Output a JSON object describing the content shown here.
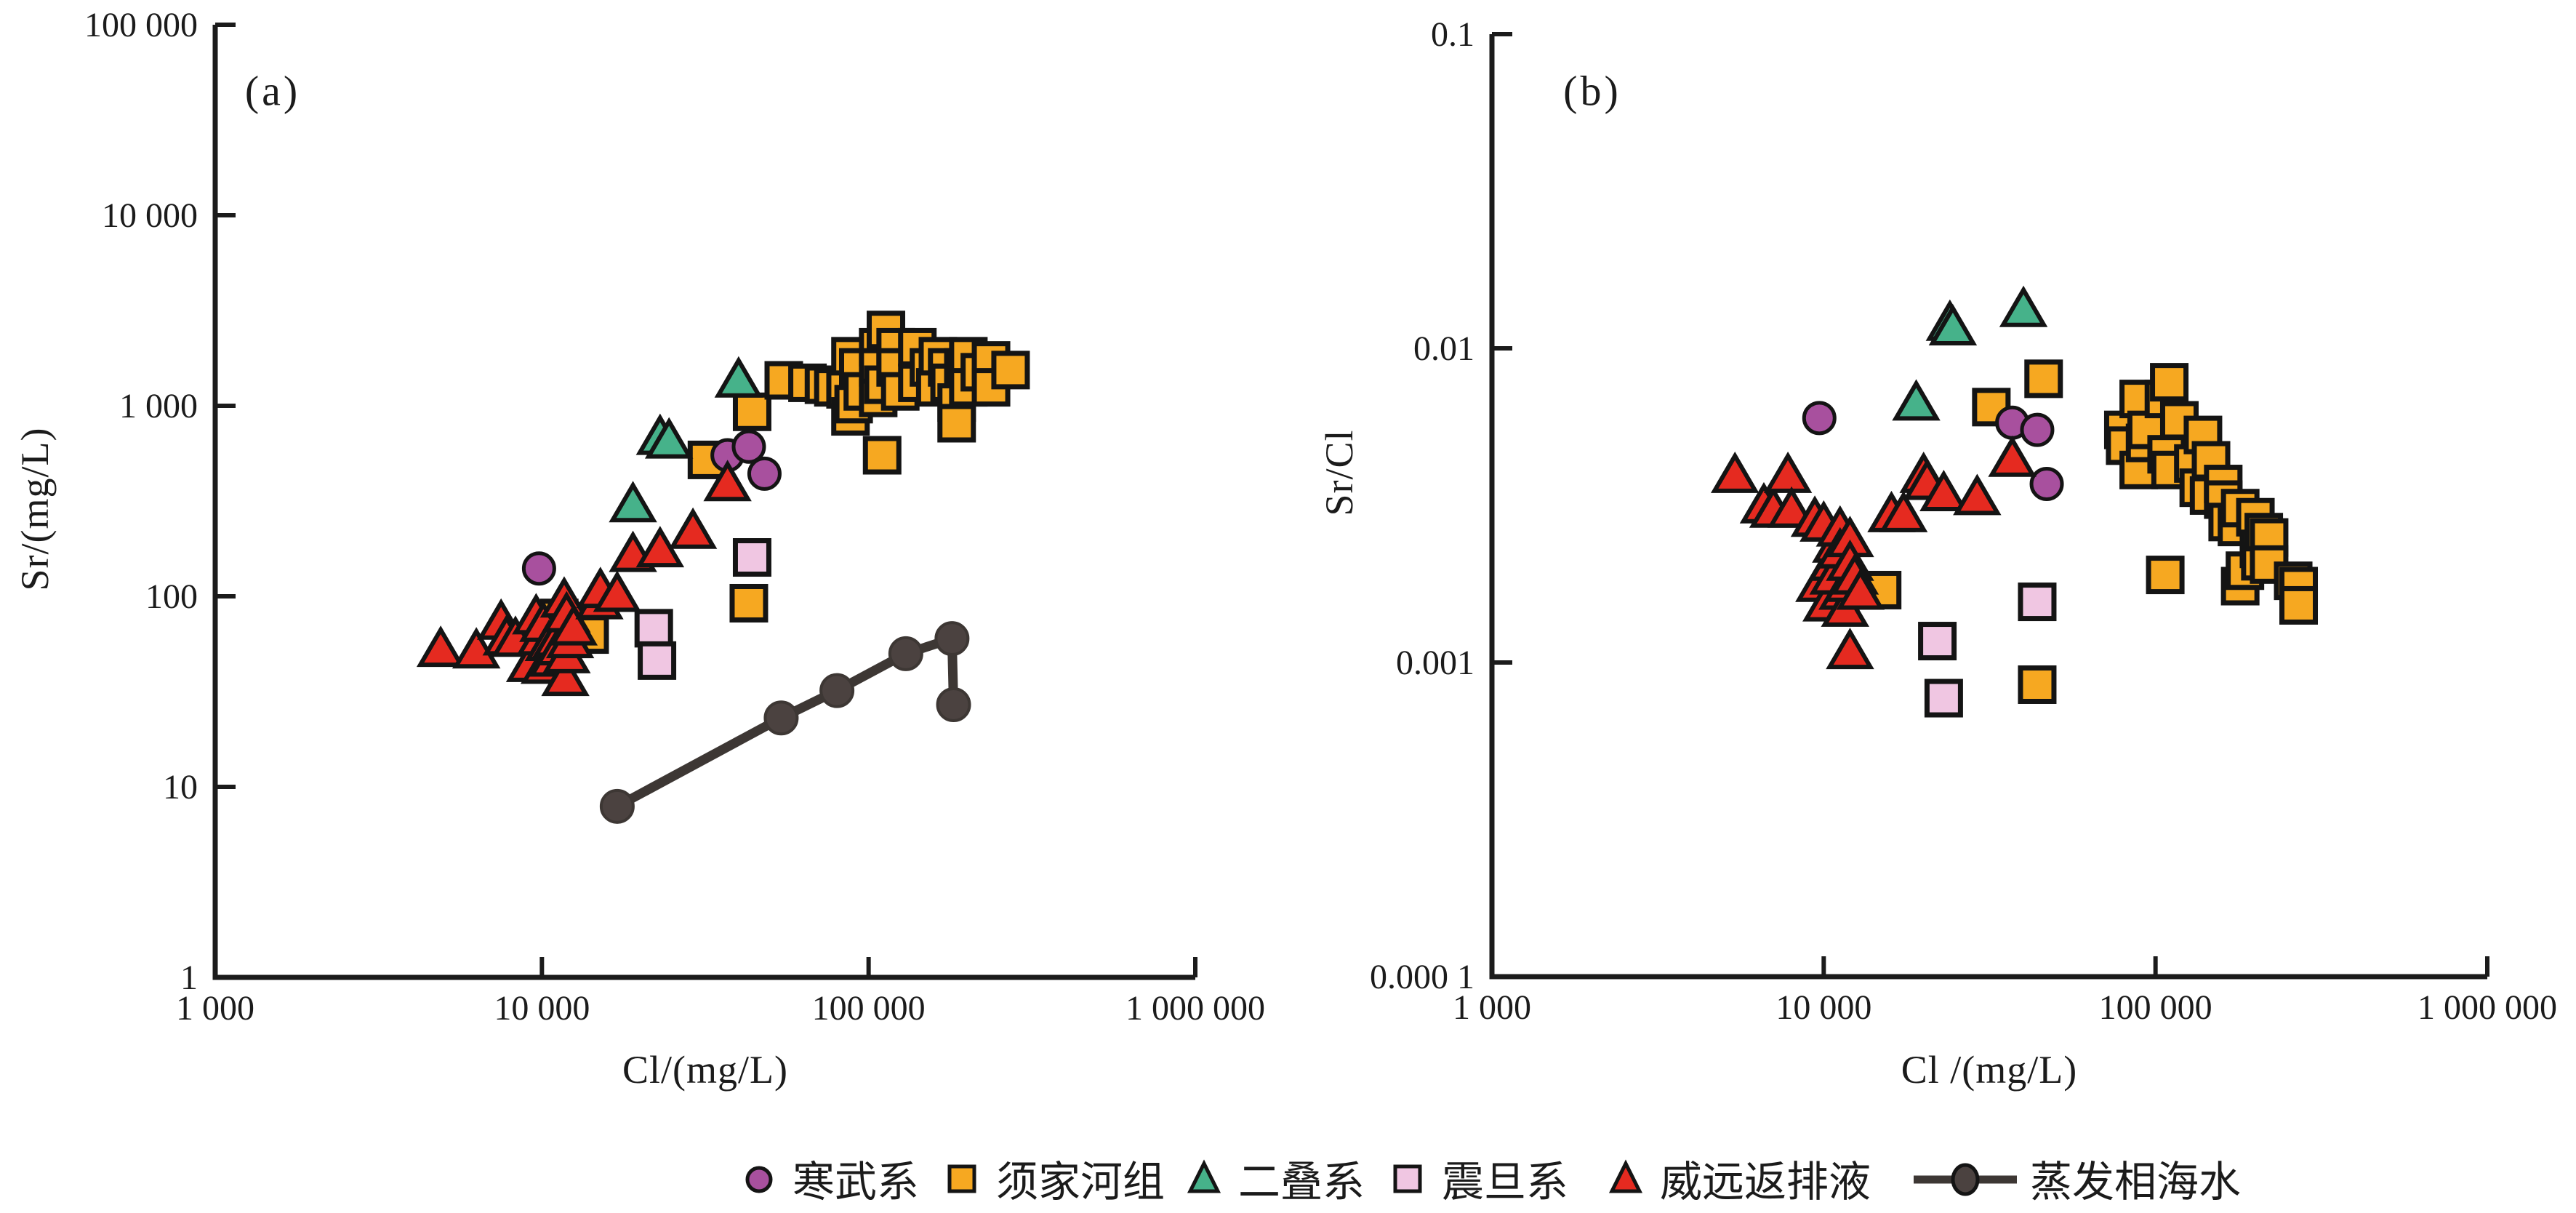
{
  "figure": {
    "panels": [
      {
        "id": "a",
        "label": "(a)",
        "xlabel": "Cl/(mg/L)",
        "ylabel": "Sr/(mg/L)"
      },
      {
        "id": "b",
        "label": "(b)",
        "xlabel": "Cl /(mg/L)",
        "ylabel": "Sr/Cl"
      }
    ]
  },
  "legend": {
    "items": [
      {
        "label": "寒武系",
        "marker": "circle",
        "color": "#A8509E"
      },
      {
        "label": "须家河组",
        "marker": "square",
        "color": "#F6A821"
      },
      {
        "label": "二叠系",
        "marker": "triangle",
        "color": "#46B28A"
      },
      {
        "label": "震旦系",
        "marker": "square",
        "color": "#F0C6E2"
      },
      {
        "label": "威远返排液",
        "marker": "triangle",
        "color": "#E52A20"
      },
      {
        "label": "蒸发相海水",
        "marker": "line-dot",
        "color": "#3D3734"
      }
    ]
  },
  "chart_data": [
    {
      "type": "scatter",
      "panel": "(a)",
      "xlabel": "Cl/(mg/L)",
      "ylabel": "Sr/(mg/L)",
      "xscale": "log",
      "yscale": "log",
      "xlim": [
        1000,
        1000000
      ],
      "ylim": [
        1,
        100000
      ],
      "grid": false,
      "legend_position": "bottom",
      "x_ticks": [
        {
          "v": 1000,
          "label": "1 000"
        },
        {
          "v": 10000,
          "label": "10 000"
        },
        {
          "v": 100000,
          "label": "100 000"
        },
        {
          "v": 1000000,
          "label": "1 000 000"
        }
      ],
      "y_ticks": [
        {
          "v": 1,
          "label": "1"
        },
        {
          "v": 10,
          "label": "10"
        },
        {
          "v": 100,
          "label": "100"
        },
        {
          "v": 1000,
          "label": "1 000"
        },
        {
          "v": 10000,
          "label": "10 000"
        },
        {
          "v": 100000,
          "label": "100 000"
        }
      ],
      "series": [
        {
          "name": "须家河组",
          "marker": "square",
          "color": "#F6A821",
          "points": [
            [
              11300,
              77
            ],
            [
              14000,
              63
            ],
            [
              43000,
              92
            ],
            [
              32000,
              520
            ],
            [
              44000,
              930
            ],
            [
              110000,
              550
            ],
            [
              55000,
              1360
            ],
            [
              65000,
              1320
            ],
            [
              73000,
              1290
            ],
            [
              78000,
              1250
            ],
            [
              85000,
              1220
            ],
            [
              88000,
              1820
            ],
            [
              88000,
              880
            ],
            [
              90000,
              1020
            ],
            [
              93000,
              1590
            ],
            [
              96000,
              1190
            ],
            [
              107000,
              2030
            ],
            [
              107000,
              1590
            ],
            [
              107000,
              1100
            ],
            [
              111000,
              1290
            ],
            [
              113000,
              2500
            ],
            [
              121000,
              2030
            ],
            [
              121000,
              1590
            ],
            [
              125000,
              1190
            ],
            [
              141000,
              2030
            ],
            [
              141000,
              1320
            ],
            [
              153000,
              1590
            ],
            [
              160000,
              1250
            ],
            [
              163000,
              1820
            ],
            [
              174000,
              1590
            ],
            [
              177000,
              1320
            ],
            [
              186000,
              1040
            ],
            [
              186000,
              810
            ],
            [
              195000,
              1590
            ],
            [
              202000,
              1820
            ],
            [
              202000,
              1250
            ],
            [
              219000,
              1500
            ],
            [
              237000,
              1730
            ],
            [
              237000,
              1250
            ],
            [
              272000,
              1540
            ]
          ]
        },
        {
          "name": "震旦系",
          "marker": "square",
          "color": "#F0C6E2",
          "points": [
            [
              22000,
              68
            ],
            [
              22500,
              46
            ],
            [
              44000,
              160
            ]
          ]
        },
        {
          "name": "二叠系",
          "marker": "triangle",
          "color": "#46B28A",
          "points": [
            [
              19000,
              310
            ],
            [
              23000,
              700
            ],
            [
              24500,
              670
            ],
            [
              40000,
              1400
            ]
          ]
        },
        {
          "name": "寒武系",
          "marker": "circle",
          "color": "#A8509E",
          "points": [
            [
              9800,
              140
            ],
            [
              37000,
              550
            ],
            [
              43000,
              610
            ],
            [
              48000,
              440
            ]
          ]
        },
        {
          "name": "威远返排液",
          "marker": "triangle",
          "color": "#E52A20",
          "points": [
            [
              4900,
              54
            ],
            [
              6300,
              53
            ],
            [
              7500,
              75
            ],
            [
              7800,
              62
            ],
            [
              8300,
              61
            ],
            [
              9200,
              45
            ],
            [
              9600,
              80
            ],
            [
              9900,
              62
            ],
            [
              10100,
              73
            ],
            [
              10200,
              44
            ],
            [
              10500,
              58
            ],
            [
              10800,
              48
            ],
            [
              11100,
              61
            ],
            [
              11300,
              55
            ],
            [
              11700,
              98
            ],
            [
              11800,
              38
            ],
            [
              11900,
              82
            ],
            [
              11900,
              50
            ],
            [
              12200,
              60
            ],
            [
              12500,
              70
            ],
            [
              15000,
              96
            ],
            [
              15100,
              110
            ],
            [
              17000,
              105
            ],
            [
              19000,
              170
            ],
            [
              23000,
              180
            ],
            [
              29000,
              225
            ],
            [
              37000,
              400
            ]
          ]
        },
        {
          "name": "蒸发相海水",
          "marker": "line-dot",
          "color": "#3D3734",
          "points": [
            [
              17000,
              7.9
            ],
            [
              54000,
              23
            ],
            [
              80000,
              32
            ],
            [
              130000,
              50
            ],
            [
              180000,
              60
            ],
            [
              182000,
              27
            ]
          ]
        }
      ]
    },
    {
      "type": "scatter",
      "panel": "(b)",
      "xlabel": "Cl /(mg/L)",
      "ylabel": "Sr/Cl",
      "xscale": "log",
      "yscale": "log",
      "xlim": [
        1000,
        1000000
      ],
      "ylim": [
        0.0001,
        0.1
      ],
      "grid": false,
      "legend_position": "bottom",
      "x_ticks": [
        {
          "v": 1000,
          "label": "1 000"
        },
        {
          "v": 10000,
          "label": "10 000"
        },
        {
          "v": 100000,
          "label": "100 000"
        },
        {
          "v": 1000000,
          "label": "1 000 000"
        }
      ],
      "y_ticks": [
        {
          "v": 0.0001,
          "label": "0.000 1"
        },
        {
          "v": 0.001,
          "label": "0.001"
        },
        {
          "v": 0.01,
          "label": "0.01"
        },
        {
          "v": 0.1,
          "label": "0.1"
        }
      ],
      "series": [
        {
          "name": "须家河组",
          "marker": "square",
          "color": "#F6A821",
          "points": [
            [
              15000,
              0.0017
            ],
            [
              32000,
              0.0065
            ],
            [
              44000,
              0.00085
            ],
            [
              46000,
              0.008
            ],
            [
              80000,
              0.0055
            ],
            [
              81000,
              0.0049
            ],
            [
              89000,
              0.0069
            ],
            [
              89000,
              0.0041
            ],
            [
              93000,
              0.005
            ],
            [
              94000,
              0.0055
            ],
            [
              106000,
              0.0069
            ],
            [
              107000,
              0.0019
            ],
            [
              108000,
              0.0046
            ],
            [
              110000,
              0.0078
            ],
            [
              111000,
              0.0041
            ],
            [
              118000,
              0.0059
            ],
            [
              130000,
              0.0043
            ],
            [
              135000,
              0.0036
            ],
            [
              139000,
              0.0053
            ],
            [
              145000,
              0.0034
            ],
            [
              147000,
              0.0044
            ],
            [
              160000,
              0.0037
            ],
            [
              160000,
              0.0033
            ],
            [
              165000,
              0.0028
            ],
            [
              176000,
              0.0027
            ],
            [
              180000,
              0.0031
            ],
            [
              180000,
              0.00175
            ],
            [
              186000,
              0.00196
            ],
            [
              200000,
              0.0029
            ],
            [
              205000,
              0.0023
            ],
            [
              207000,
              0.0021
            ],
            [
              212000,
              0.0026
            ],
            [
              220000,
              0.0025
            ],
            [
              220000,
              0.00205
            ],
            [
              260000,
              0.00182
            ],
            [
              270000,
              0.00175
            ],
            [
              270000,
              0.00152
            ]
          ]
        },
        {
          "name": "震旦系",
          "marker": "square",
          "color": "#F0C6E2",
          "points": [
            [
              22000,
              0.00117
            ],
            [
              23000,
              0.00077
            ],
            [
              44000,
              0.00156
            ]
          ]
        },
        {
          "name": "二叠系",
          "marker": "triangle",
          "color": "#46B28A",
          "points": [
            [
              19000,
              0.0068
            ],
            [
              24000,
              0.0122
            ],
            [
              24500,
              0.0118
            ],
            [
              40000,
              0.0135
            ]
          ]
        },
        {
          "name": "寒武系",
          "marker": "circle",
          "color": "#A8509E",
          "points": [
            [
              9700,
              0.006
            ],
            [
              37000,
              0.0058
            ],
            [
              44000,
              0.0055
            ],
            [
              47000,
              0.0037
            ]
          ]
        },
        {
          "name": "威远返排液",
          "marker": "triangle",
          "color": "#E52A20",
          "points": [
            [
              5400,
              0.004
            ],
            [
              6600,
              0.0032
            ],
            [
              7050,
              0.0031
            ],
            [
              7800,
              0.004
            ],
            [
              8000,
              0.0031
            ],
            [
              9400,
              0.0029
            ],
            [
              9700,
              0.0018
            ],
            [
              10000,
              0.0028
            ],
            [
              10200,
              0.00156
            ],
            [
              10600,
              0.0021
            ],
            [
              10700,
              0.0019
            ],
            [
              10900,
              0.0024
            ],
            [
              11200,
              0.0027
            ],
            [
              11200,
              0.0023
            ],
            [
              11400,
              0.0017
            ],
            [
              11600,
              0.0015
            ],
            [
              11800,
              0.0018
            ],
            [
              12000,
              0.0025
            ],
            [
              12000,
              0.0021
            ],
            [
              12000,
              0.0011
            ],
            [
              12400,
              0.0019
            ],
            [
              12900,
              0.0017
            ],
            [
              16000,
              0.003
            ],
            [
              17400,
              0.003
            ],
            [
              20000,
              0.004
            ],
            [
              20500,
              0.0038
            ],
            [
              23000,
              0.0035
            ],
            [
              29000,
              0.0034
            ],
            [
              37000,
              0.0045
            ]
          ]
        }
      ]
    }
  ]
}
